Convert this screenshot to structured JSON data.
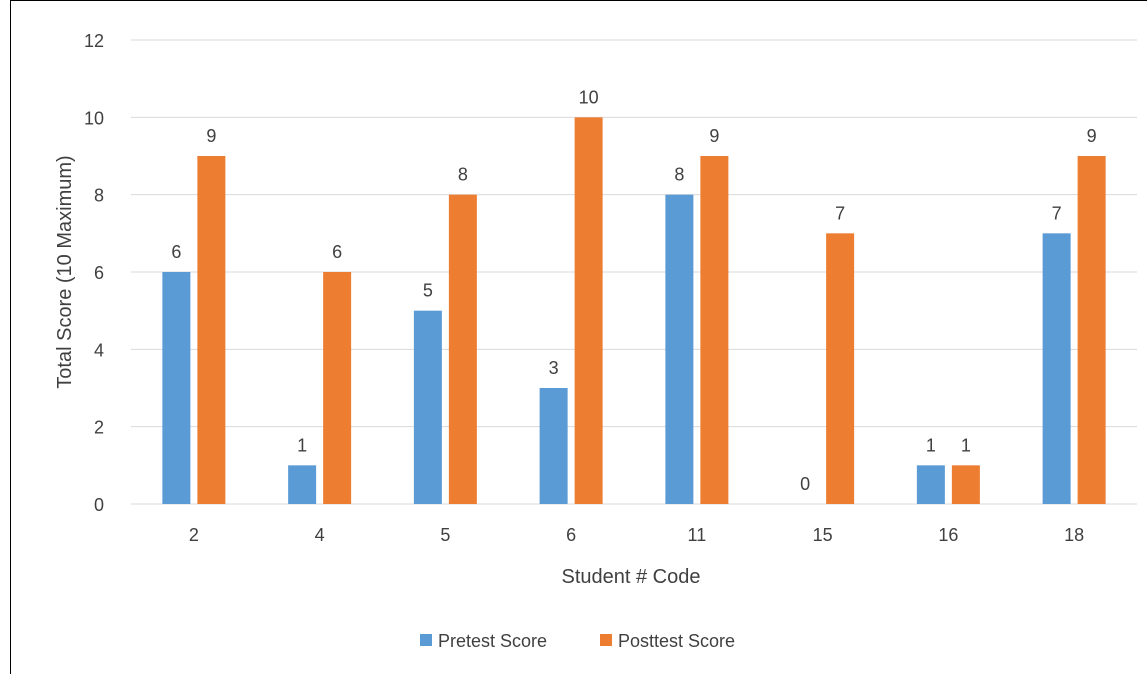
{
  "chart_data": {
    "type": "bar",
    "title": "",
    "xlabel": "Student # Code",
    "ylabel": "Total Score (10 Maximum)",
    "categories": [
      "2",
      "4",
      "5",
      "6",
      "11",
      "15",
      "16",
      "18"
    ],
    "series": [
      {
        "name": "Pretest Score",
        "color": "#5B9BD5",
        "values": [
          6,
          1,
          5,
          3,
          8,
          0,
          1,
          7
        ]
      },
      {
        "name": "Posttest Score",
        "color": "#ED7D31",
        "values": [
          9,
          6,
          8,
          10,
          9,
          7,
          1,
          9
        ]
      }
    ],
    "ylim": [
      0,
      12
    ],
    "yticks": [
      "0",
      "2",
      "4",
      "6",
      "8",
      "10",
      "12"
    ],
    "grid": true,
    "legend_position": "bottom",
    "data_labels": true
  }
}
